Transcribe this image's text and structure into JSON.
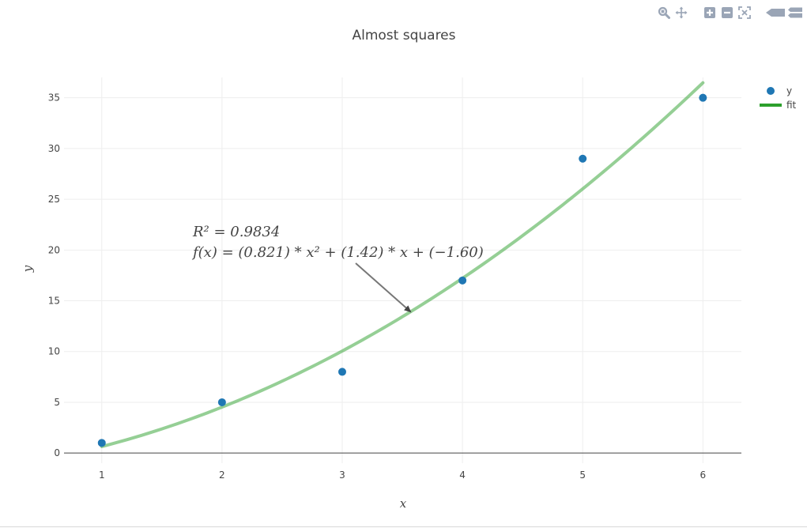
{
  "toolbar": {
    "buttons": [
      {
        "name": "zoom-icon",
        "group": 0
      },
      {
        "name": "pan-icon",
        "group": 0
      },
      {
        "name": "zoom-in-icon",
        "group": 1
      },
      {
        "name": "zoom-out-icon",
        "group": 1
      },
      {
        "name": "autoscale-icon",
        "group": 1
      },
      {
        "name": "show-closest-icon",
        "group": 2
      },
      {
        "name": "compare-data-icon",
        "group": 2
      }
    ],
    "color": "#9aa5b6"
  },
  "chart_data": {
    "type": "scatter",
    "title": "Almost squares",
    "xlabel": "x",
    "ylabel": "y",
    "xlim": [
      0.686,
      6.32
    ],
    "ylim": [
      -1,
      37
    ],
    "x_ticks": [
      1,
      2,
      3,
      4,
      5,
      6
    ],
    "y_ticks": [
      0,
      5,
      10,
      15,
      20,
      25,
      30,
      35
    ],
    "grid": true,
    "legend_position": "top-right",
    "series": [
      {
        "name": "y",
        "kind": "markers",
        "color": "#1f77b4",
        "x": [
          1,
          2,
          3,
          4,
          5,
          6
        ],
        "y": [
          1,
          5,
          8,
          17,
          29,
          35
        ]
      },
      {
        "name": "fit",
        "kind": "line",
        "color": "#2ca02c",
        "coefficients": {
          "a": 0.821,
          "b": 1.42,
          "c": -1.6
        },
        "x_range": [
          1,
          6
        ]
      }
    ],
    "annotation": {
      "line1": "R² = 0.9834",
      "line2": "f(x) = (0.821) * x² + (1.42) * x + (−1.60)",
      "arrow_target": {
        "x": 3.57,
        "y": 13.9
      }
    }
  }
}
